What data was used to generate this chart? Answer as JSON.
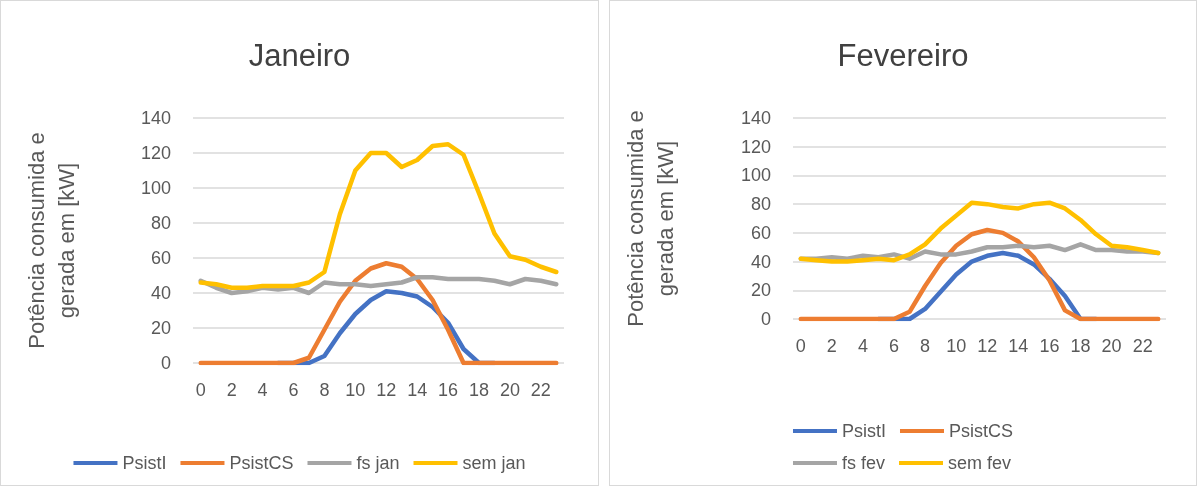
{
  "chart_data": [
    {
      "type": "line",
      "title": "Janeiro",
      "ylabel": "Potência consumida e gerada em [kW]",
      "categories": [
        "0",
        null,
        "2",
        null,
        "4",
        null,
        "6",
        null,
        "8",
        null,
        "10",
        null,
        "12",
        null,
        "14",
        null,
        "16",
        null,
        "18",
        null,
        "20",
        null,
        "22",
        null
      ],
      "ylim": [
        0,
        140
      ],
      "yticks": [
        0,
        20,
        40,
        60,
        80,
        100,
        120,
        140
      ],
      "grid": "y",
      "legend": "bottom",
      "marker": "none",
      "line_style": "solid",
      "series": [
        {
          "name": "PsistI",
          "color": "#4472c4",
          "values": [
            null,
            null,
            null,
            null,
            null,
            0,
            0,
            0,
            4,
            17,
            28,
            36,
            41,
            40,
            38,
            32,
            23,
            8,
            0,
            0,
            null,
            null,
            null,
            null
          ]
        },
        {
          "name": "PsistCS",
          "color": "#ed7d31",
          "values": [
            0,
            0,
            0,
            0,
            0,
            0,
            0,
            3,
            19,
            35,
            47,
            54,
            57,
            55,
            48,
            36,
            19,
            0,
            0,
            0,
            0,
            0,
            0,
            0
          ]
        },
        {
          "name": "fs jan",
          "color": "#a5a5a5",
          "values": [
            47,
            43,
            40,
            41,
            43,
            42,
            43,
            40,
            46,
            45,
            45,
            44,
            45,
            46,
            49,
            49,
            48,
            48,
            48,
            47,
            45,
            48,
            47,
            45
          ]
        },
        {
          "name": "sem jan",
          "color": "#ffc000",
          "values": [
            46,
            45,
            43,
            43,
            44,
            44,
            44,
            46,
            52,
            85,
            110,
            120,
            120,
            112,
            116,
            124,
            125,
            119,
            97,
            74,
            61,
            59,
            55,
            52
          ]
        }
      ]
    },
    {
      "type": "line",
      "title": "Fevereiro",
      "ylabel": "Potência consumida e gerada em [kW]",
      "categories": [
        "0",
        null,
        "2",
        null,
        "4",
        null,
        "6",
        null,
        "8",
        null,
        "10",
        null,
        "12",
        null,
        "14",
        null,
        "16",
        null,
        "18",
        null,
        "20",
        null,
        "22",
        null
      ],
      "ylim": [
        0,
        140
      ],
      "yticks": [
        0,
        20,
        40,
        60,
        80,
        100,
        120,
        140
      ],
      "grid": "y",
      "legend": "bottom",
      "marker": "none",
      "line_style": "solid",
      "series": [
        {
          "name": "PsistI",
          "color": "#4472c4",
          "values": [
            null,
            null,
            null,
            null,
            null,
            0,
            0,
            0,
            7,
            19,
            31,
            40,
            44,
            46,
            44,
            38,
            28,
            16,
            0,
            0,
            null,
            null,
            null,
            null
          ]
        },
        {
          "name": "PsistCS",
          "color": "#ed7d31",
          "values": [
            0,
            0,
            0,
            0,
            0,
            0,
            0,
            5,
            23,
            39,
            51,
            59,
            62,
            60,
            54,
            43,
            27,
            6,
            0,
            0,
            0,
            0,
            0,
            0
          ]
        },
        {
          "name": "fs fev",
          "color": "#a5a5a5",
          "values": [
            42,
            42,
            43,
            42,
            44,
            43,
            45,
            42,
            47,
            45,
            45,
            47,
            50,
            50,
            51,
            50,
            51,
            48,
            52,
            48,
            48,
            47,
            47,
            46
          ]
        },
        {
          "name": "sem fev",
          "color": "#ffc000",
          "values": [
            42,
            41,
            40,
            40,
            41,
            42,
            41,
            45,
            52,
            63,
            72,
            81,
            80,
            78,
            77,
            80,
            81,
            77,
            69,
            59,
            51,
            50,
            48,
            46
          ]
        }
      ]
    }
  ]
}
